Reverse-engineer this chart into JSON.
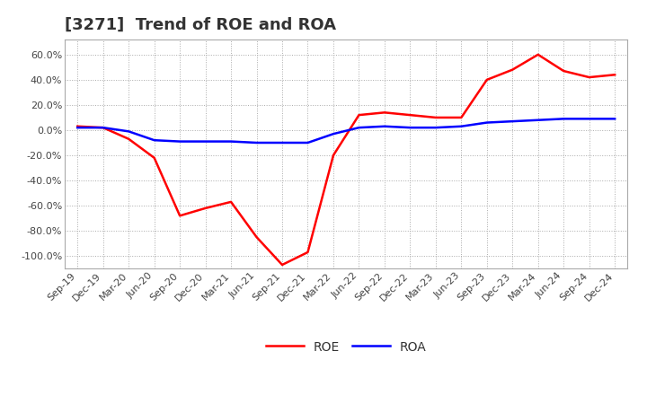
{
  "title": "[3271]  Trend of ROE and ROA",
  "ylim": [
    -1.1,
    0.72
  ],
  "yticks": [
    0.6,
    0.4,
    0.2,
    0.0,
    -0.2,
    -0.4,
    -0.6,
    -0.8,
    -1.0
  ],
  "background_color": "#ffffff",
  "grid_color": "#aaaaaa",
  "roe_color": "#ff0000",
  "roa_color": "#0000ff",
  "dates": [
    "Sep-19",
    "Dec-19",
    "Mar-20",
    "Jun-20",
    "Sep-20",
    "Dec-20",
    "Mar-21",
    "Jun-21",
    "Sep-21",
    "Dec-21",
    "Mar-22",
    "Jun-22",
    "Sep-22",
    "Dec-22",
    "Mar-23",
    "Jun-23",
    "Sep-23",
    "Dec-23",
    "Mar-24",
    "Jun-24",
    "Sep-24",
    "Dec-24"
  ],
  "roe": [
    0.03,
    0.02,
    -0.07,
    -0.22,
    -0.68,
    -0.62,
    -0.57,
    -0.85,
    -1.07,
    -0.97,
    -0.2,
    0.12,
    0.14,
    0.12,
    0.1,
    0.1,
    0.4,
    0.48,
    0.6,
    0.47,
    0.42,
    0.44
  ],
  "roa": [
    0.02,
    0.02,
    -0.01,
    -0.08,
    -0.09,
    -0.09,
    -0.09,
    -0.1,
    -0.1,
    -0.1,
    -0.03,
    0.02,
    0.03,
    0.02,
    0.02,
    0.03,
    0.06,
    0.07,
    0.08,
    0.09,
    0.09,
    0.09
  ],
  "title_fontsize": 13,
  "tick_fontsize": 8,
  "tick_color": "#444444",
  "legend_fontsize": 10,
  "line_width": 1.8
}
